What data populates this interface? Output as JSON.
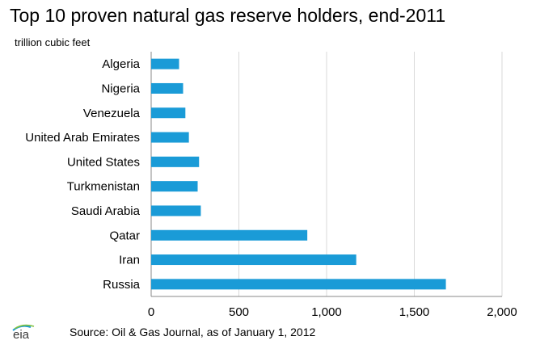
{
  "title": "Top 10 proven natural gas reserve holders, end-2011",
  "unit_label": "trillion cubic feet",
  "source": "Source: Oil & Gas Journal, as of January 1, 2012",
  "logo_text": "eia",
  "colors": {
    "bar": "#1a9bd7",
    "grid": "#d9d9d9",
    "axis": "#888888"
  },
  "chart_data": {
    "type": "bar",
    "orientation": "horizontal",
    "categories": [
      "Algeria",
      "Nigeria",
      "Venezuela",
      "United Arab Emirates",
      "United States",
      "Turkmenistan",
      "Saudi Arabia",
      "Qatar",
      "Iran",
      "Russia"
    ],
    "values": [
      159,
      182,
      195,
      215,
      273,
      265,
      283,
      890,
      1169,
      1680
    ],
    "xlim": [
      0,
      2000
    ],
    "xticks": [
      0,
      500,
      1000,
      1500,
      2000
    ],
    "xtick_labels": [
      "0",
      "500",
      "1,000",
      "1,500",
      "2,000"
    ],
    "grid": true,
    "legend": "none"
  }
}
